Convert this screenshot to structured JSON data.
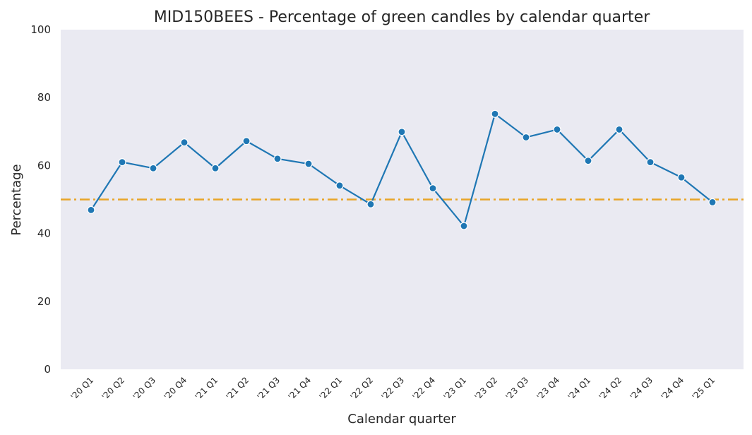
{
  "chart_data": {
    "type": "line",
    "title": "MID150BEES - Percentage of green candles by calendar quarter",
    "xlabel": "Calendar quarter",
    "ylabel": "Percentage",
    "ylim": [
      0,
      100
    ],
    "yticks": [
      0,
      20,
      40,
      60,
      80,
      100
    ],
    "grid": false,
    "categories": [
      "'20 Q1",
      "'20 Q2",
      "'20 Q3",
      "'20 Q4",
      "'21 Q1",
      "'21 Q2",
      "'21 Q3",
      "'21 Q4",
      "'22 Q1",
      "'22 Q2",
      "'22 Q3",
      "'22 Q4",
      "'23 Q1",
      "'23 Q2",
      "'23 Q3",
      "'23 Q4",
      "'24 Q1",
      "'24 Q2",
      "'24 Q3",
      "'24 Q4",
      "'25 Q1"
    ],
    "series": [
      {
        "values": [
          46.9,
          61.0,
          59.2,
          66.8,
          59.2,
          67.2,
          62.0,
          60.5,
          54.1,
          48.6,
          69.9,
          53.3,
          42.2,
          75.2,
          68.3,
          70.6,
          61.4,
          70.6,
          61.0,
          56.5,
          49.2
        ],
        "color": "#1f77b4"
      }
    ],
    "reference_line": {
      "value": 50,
      "color": "#e8a527",
      "style": "dash-dot"
    },
    "plot_background": "#eaeaf2"
  }
}
